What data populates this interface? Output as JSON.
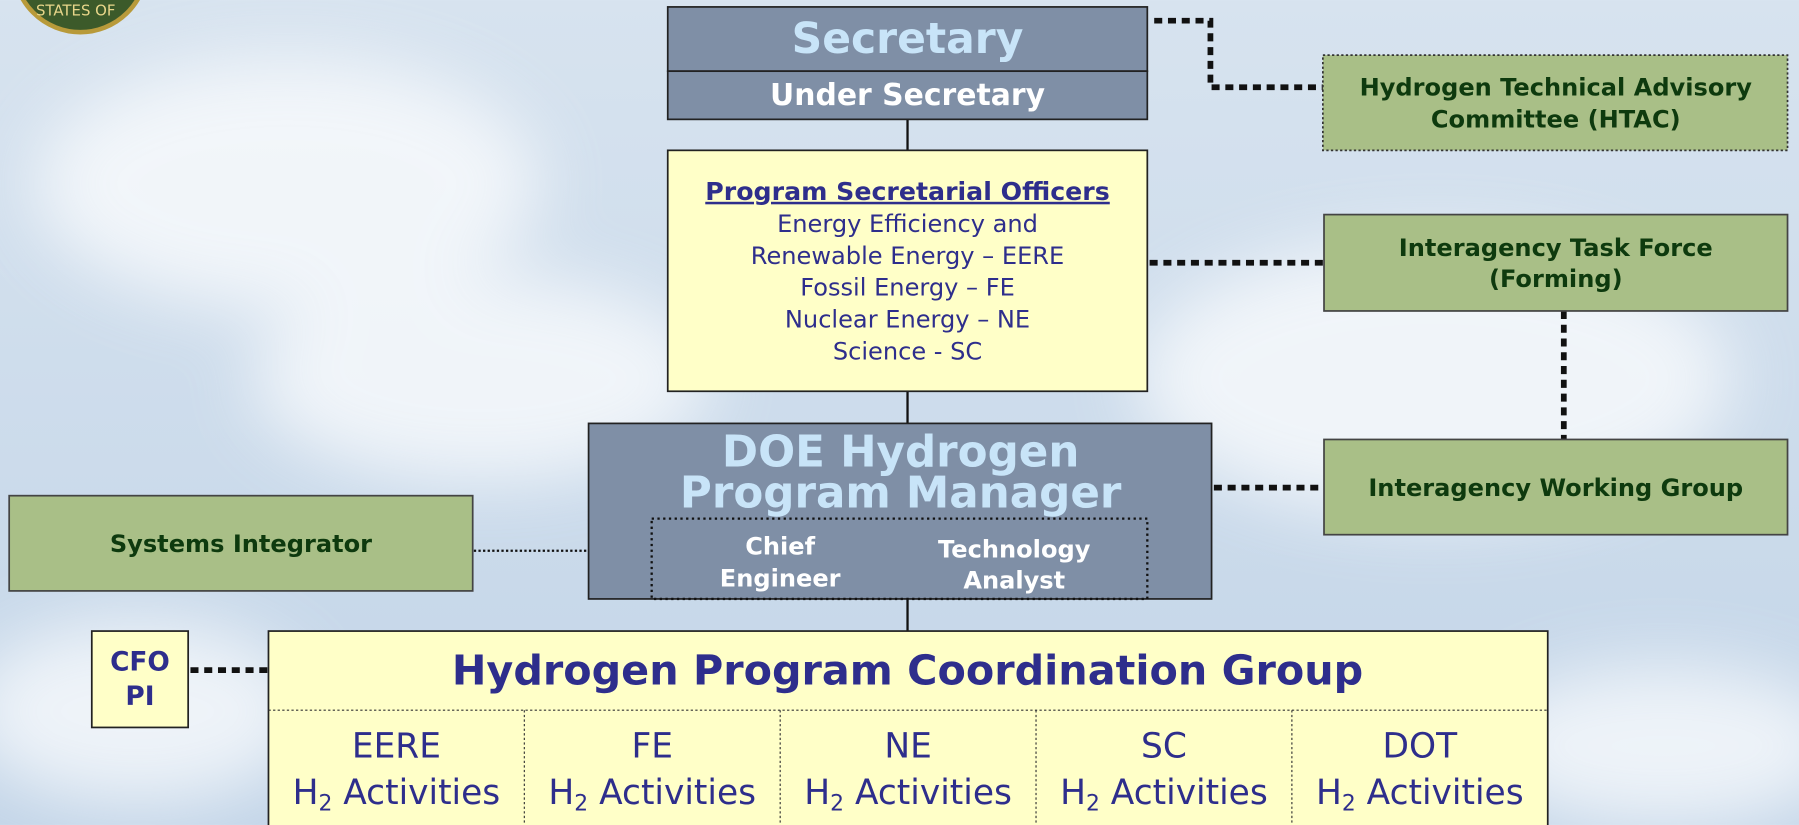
{
  "seal": {
    "text": "STATES OF"
  },
  "secretary": {
    "label": "Secretary"
  },
  "under_secretary": {
    "label": "Under Secretary"
  },
  "program_secretarial_officers": {
    "title": "Program Secretarial Officers",
    "lines": [
      "Energy Efficiency and",
      "Renewable Energy – EERE",
      "Fossil Energy – FE",
      "Nuclear Energy – NE",
      "Science - SC"
    ]
  },
  "program_manager": {
    "lines": [
      "DOE Hydrogen",
      "Program  Manager"
    ]
  },
  "chief_engineer": {
    "lines": [
      "Chief",
      "Engineer"
    ]
  },
  "technology_analyst": {
    "lines": [
      "Technology",
      "Analyst"
    ]
  },
  "systems_integrator": {
    "label": "Systems Integrator"
  },
  "cfo": {
    "lines": [
      "CFO",
      "PI"
    ]
  },
  "htac": {
    "lines": [
      "Hydrogen Technical Advisory",
      "Committee (HTAC)"
    ]
  },
  "task_force": {
    "lines": [
      "Interagency Task Force",
      "(Forming)"
    ]
  },
  "working_group": {
    "label": "Interagency Working Group"
  },
  "coordination_group": {
    "title": "Hydrogen Program Coordination Group",
    "columns": [
      {
        "agency": "EERE",
        "symbol": "H",
        "subscript": "2",
        "text": " Activities"
      },
      {
        "agency": "FE",
        "symbol": "H",
        "subscript": "2",
        "text": " Activities"
      },
      {
        "agency": "NE",
        "symbol": "H",
        "subscript": "2",
        "text": " Activities"
      },
      {
        "agency": "SC",
        "symbol": "H",
        "subscript": "2",
        "text": " Activities"
      },
      {
        "agency": "DOT",
        "symbol": "H",
        "subscript": "2",
        "text": " Activities"
      }
    ]
  }
}
